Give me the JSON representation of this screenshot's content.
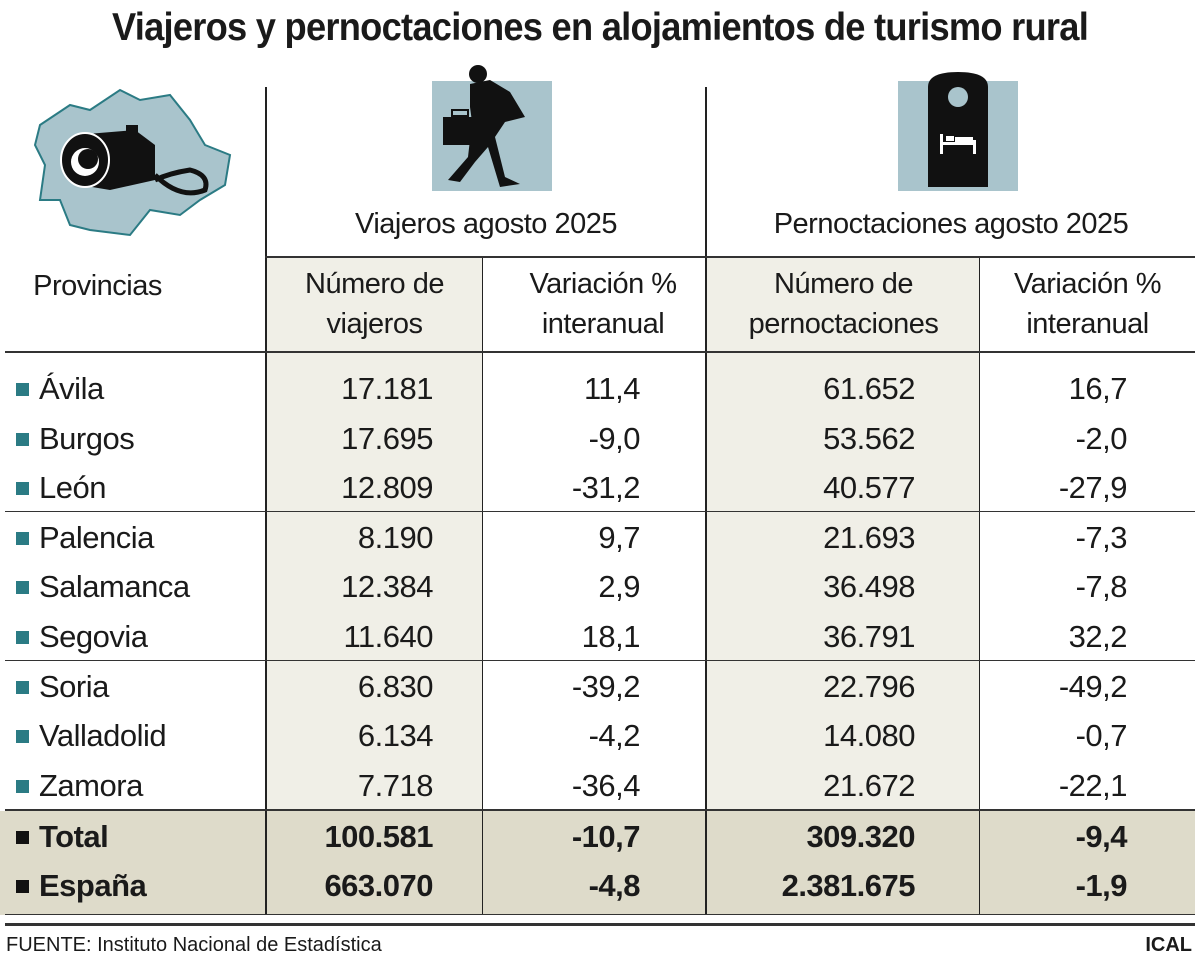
{
  "title": "Viajeros y pernoctaciones en alojamientos de turismo rural",
  "chart_data": {
    "type": "table",
    "title": "Viajeros y pernoctaciones en alojamientos de turismo rural",
    "row_header": "Provincias",
    "groups": [
      "Viajeros agosto 2025",
      "Pernoctaciones agosto 2025"
    ],
    "columns": [
      "Número de viajeros",
      "Variación % interanual",
      "Número de pernoctaciones",
      "Variación % interanual"
    ],
    "rows": [
      {
        "name": "Ávila",
        "values": [
          "17.181",
          "11,4",
          "61.652",
          "16,7"
        ]
      },
      {
        "name": "Burgos",
        "values": [
          "17.695",
          "-9,0",
          "53.562",
          "-2,0"
        ]
      },
      {
        "name": "León",
        "values": [
          "12.809",
          "-31,2",
          "40.577",
          "-27,9"
        ]
      },
      {
        "name": "Palencia",
        "values": [
          "8.190",
          "9,7",
          "21.693",
          "-7,3"
        ]
      },
      {
        "name": "Salamanca",
        "values": [
          "12.384",
          "2,9",
          "36.498",
          "-7,8"
        ]
      },
      {
        "name": "Segovia",
        "values": [
          "11.640",
          "18,1",
          "36.791",
          "32,2"
        ]
      },
      {
        "name": "Soria",
        "values": [
          "6.830",
          "-39,2",
          "22.796",
          "-49,2"
        ]
      },
      {
        "name": "Valladolid",
        "values": [
          "6.134",
          "-4,2",
          "14.080",
          "-0,7"
        ]
      },
      {
        "name": "Zamora",
        "values": [
          "7.718",
          "-36,4",
          "21.672",
          "-22,1"
        ]
      },
      {
        "name": "Total",
        "values": [
          "100.581",
          "-10,7",
          "309.320",
          "-9,4"
        ]
      },
      {
        "name": "España",
        "values": [
          "663.070",
          "-4,8",
          "2.381.675",
          "-1,9"
        ]
      }
    ]
  },
  "header": {
    "provincias": "Provincias",
    "group1": "Viajeros agosto 2025",
    "group2": "Pernoctaciones agosto 2025",
    "col1a": "Número de",
    "col1b": "viajeros",
    "col2a": "Variación %",
    "col2b": "interanual",
    "col3a": "Número de",
    "col3b": "pernoctaciones",
    "col4a": "Variación %",
    "col4b": "interanual"
  },
  "footer": {
    "source": "FUENTE: Instituto Nacional de Estadística",
    "credit": "ICAL"
  },
  "colors": {
    "bullet": "#2b7b84",
    "icon_bg": "#a9c4cc",
    "shade": "#f0efe7",
    "total_shade": "#dedbca"
  },
  "icons": [
    "castilla-leon-map-camera-icon",
    "traveler-icon",
    "door-hanger-bed-icon"
  ]
}
